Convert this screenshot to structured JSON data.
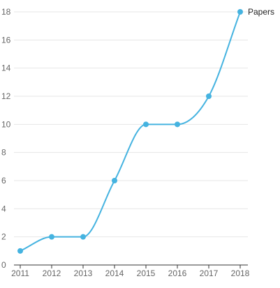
{
  "chart_data": {
    "type": "line",
    "x": [
      2011,
      2012,
      2013,
      2014,
      2015,
      2016,
      2017,
      2018
    ],
    "series": [
      {
        "name": "Papers",
        "values": [
          1,
          2,
          2,
          6,
          10,
          10,
          12,
          18
        ]
      }
    ],
    "ylim": [
      0,
      18
    ],
    "yticks": [
      0,
      2,
      4,
      6,
      8,
      10,
      12,
      14,
      16,
      18
    ],
    "xticks": [
      "2011",
      "2012",
      "2013",
      "2014",
      "2015",
      "2016",
      "2017",
      "2018"
    ],
    "grid": true,
    "series_label_position": "end-of-line",
    "colors": {
      "line": "#45b3e0",
      "grid": "#e6e6e6",
      "axis": "#333333",
      "tick_text": "#666666"
    }
  }
}
